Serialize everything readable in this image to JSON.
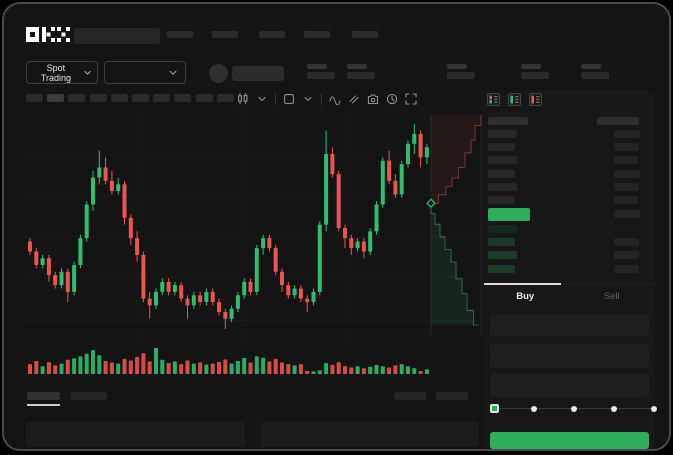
{
  "header": {
    "logo": "OKX",
    "nav_item_count": 5
  },
  "market_bar": {
    "market_type": "Spot Trading"
  },
  "chart_toolbar": {
    "timeframe_count": 10,
    "active_timeframe_index": 1,
    "icons": [
      "candles-style-icon",
      "chevron-down-icon",
      "overlay-icon",
      "chevron-down-icon",
      "indicator-wave-icon",
      "compare-icon",
      "camera-icon",
      "history-clock-icon",
      "fullscreen-icon"
    ]
  },
  "orderbook": {
    "view_toggles": [
      "combined-book-icon",
      "bids-book-icon",
      "asks-book-icon"
    ],
    "ask_row_count": 6,
    "bid_row_count": 4,
    "bid_rows_with_amount": 3,
    "last_price_highlight_color": "#2eae5d"
  },
  "trade_panel": {
    "tabs": [
      {
        "label": "Buy",
        "active": true
      },
      {
        "label": "Sell",
        "active": false
      }
    ],
    "input_count": 3,
    "slider": {
      "stop_count": 5,
      "active_stop": 0
    },
    "submit_color": "#2fae5e"
  },
  "bottom_bar": {
    "tab_count": 2,
    "active_tab_index": 0,
    "right_block_count": 2,
    "panel_count": 2
  },
  "chart_data": {
    "type": "candlestick",
    "title": "",
    "axis_labels_visible": false,
    "grid": true,
    "price_range": [
      30,
      96
    ],
    "up_color": "#2ebd71",
    "down_color": "#ec544f",
    "series": [
      {
        "name": "price",
        "ohlc": [
          [
            59,
            60,
            55,
            56
          ],
          [
            56,
            57,
            51,
            52
          ],
          [
            52,
            55,
            51,
            54
          ],
          [
            54,
            55,
            47,
            49
          ],
          [
            49,
            50,
            45,
            46
          ],
          [
            46,
            51,
            45,
            50
          ],
          [
            50,
            51,
            41,
            44
          ],
          [
            44,
            53,
            43,
            52
          ],
          [
            52,
            61,
            51,
            60
          ],
          [
            60,
            71,
            59,
            70
          ],
          [
            70,
            80,
            68,
            78
          ],
          [
            78,
            86,
            76,
            81
          ],
          [
            81,
            84,
            76,
            77
          ],
          [
            77,
            80,
            73,
            74
          ],
          [
            74,
            78,
            73,
            76
          ],
          [
            76,
            77,
            64,
            66
          ],
          [
            66,
            67,
            58,
            60
          ],
          [
            60,
            62,
            53,
            55
          ],
          [
            55,
            56,
            41,
            42
          ],
          [
            42,
            44,
            36,
            40
          ],
          [
            40,
            45,
            39,
            44
          ],
          [
            44,
            48,
            43,
            47
          ],
          [
            47,
            48,
            43,
            44
          ],
          [
            44,
            47,
            43,
            46
          ],
          [
            46,
            47,
            41,
            42
          ],
          [
            42,
            43,
            36,
            40
          ],
          [
            40,
            44,
            39,
            43
          ],
          [
            43,
            44,
            40,
            41
          ],
          [
            41,
            45,
            40,
            44
          ],
          [
            44,
            45,
            40,
            41
          ],
          [
            41,
            42,
            37,
            38
          ],
          [
            38,
            39,
            33,
            36
          ],
          [
            36,
            40,
            35,
            39
          ],
          [
            39,
            44,
            38,
            43
          ],
          [
            43,
            48,
            42,
            47
          ],
          [
            47,
            48,
            43,
            44
          ],
          [
            44,
            58,
            43,
            57
          ],
          [
            57,
            61,
            55,
            60
          ],
          [
            60,
            61,
            56,
            57
          ],
          [
            57,
            58,
            49,
            50
          ],
          [
            50,
            51,
            44,
            46
          ],
          [
            46,
            47,
            42,
            43
          ],
          [
            43,
            46,
            42,
            45
          ],
          [
            45,
            46,
            41,
            42
          ],
          [
            42,
            43,
            38,
            41
          ],
          [
            41,
            45,
            40,
            44
          ],
          [
            44,
            65,
            43,
            64
          ],
          [
            64,
            92,
            62,
            85
          ],
          [
            85,
            87,
            78,
            79
          ],
          [
            79,
            80,
            62,
            63
          ],
          [
            63,
            64,
            57,
            60
          ],
          [
            60,
            61,
            55,
            57
          ],
          [
            57,
            60,
            56,
            59
          ],
          [
            59,
            60,
            54,
            56
          ],
          [
            56,
            63,
            55,
            62
          ],
          [
            62,
            71,
            61,
            70
          ],
          [
            70,
            84,
            69,
            83
          ],
          [
            83,
            86,
            76,
            77
          ],
          [
            77,
            79,
            72,
            73
          ],
          [
            73,
            83,
            72,
            82
          ],
          [
            82,
            89,
            81,
            88
          ],
          [
            88,
            94,
            85,
            91
          ],
          [
            91,
            92,
            81,
            84
          ],
          [
            84,
            88,
            82,
            87
          ]
        ]
      }
    ],
    "volume": [
      0.38,
      0.5,
      0.3,
      0.45,
      0.33,
      0.4,
      0.55,
      0.6,
      0.68,
      0.78,
      0.92,
      0.72,
      0.5,
      0.44,
      0.4,
      0.58,
      0.52,
      0.66,
      0.8,
      0.48,
      1.0,
      0.55,
      0.42,
      0.48,
      0.38,
      0.52,
      0.4,
      0.44,
      0.36,
      0.4,
      0.46,
      0.56,
      0.4,
      0.5,
      0.62,
      0.44,
      0.68,
      0.62,
      0.48,
      0.58,
      0.44,
      0.38,
      0.33,
      0.38,
      0.12,
      0.1,
      0.14,
      0.42,
      0.35,
      0.45,
      0.3,
      0.25,
      0.3,
      0.22,
      0.28,
      0.35,
      0.3,
      0.25,
      0.33,
      0.38,
      0.3,
      0.22,
      0.12,
      0.18
    ],
    "depth": {
      "asks_steps": [
        [
          1,
          0
        ],
        [
          0.88,
          0.05
        ],
        [
          0.8,
          0.12
        ],
        [
          0.68,
          0.18
        ],
        [
          0.55,
          0.25
        ],
        [
          0.42,
          0.3
        ],
        [
          0.3,
          0.34
        ],
        [
          0.15,
          0.38
        ],
        [
          0,
          0.42
        ]
      ],
      "bids_steps": [
        [
          0,
          0.42
        ],
        [
          0.08,
          0.47
        ],
        [
          0.18,
          0.52
        ],
        [
          0.28,
          0.58
        ],
        [
          0.4,
          0.64
        ],
        [
          0.5,
          0.7
        ],
        [
          0.62,
          0.78
        ],
        [
          0.72,
          0.85
        ],
        [
          0.85,
          0.93
        ],
        [
          0.96,
          1
        ]
      ]
    }
  }
}
